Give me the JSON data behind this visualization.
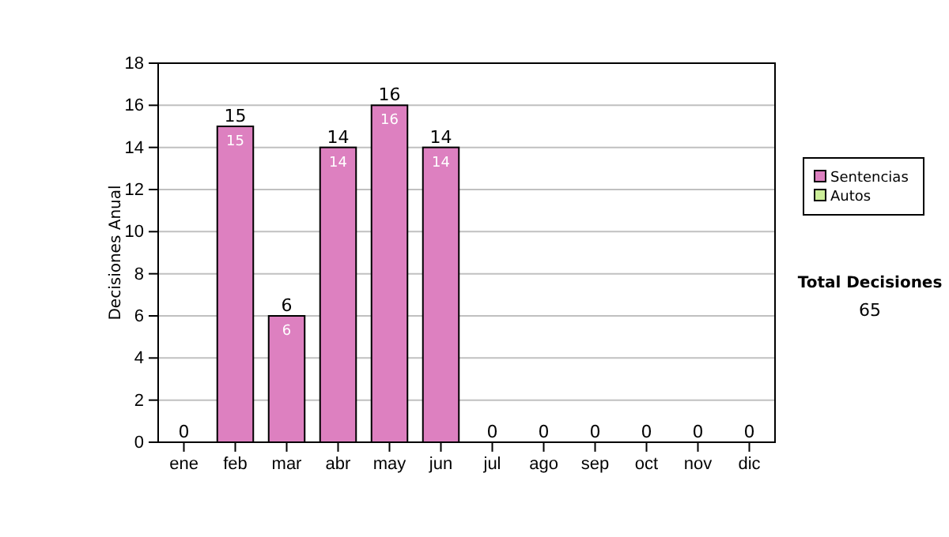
{
  "chart_data": {
    "type": "bar",
    "stacked": true,
    "ylabel": "Decisiones Anual",
    "categories": [
      "ene",
      "feb",
      "mar",
      "abr",
      "may",
      "jun",
      "jul",
      "ago",
      "sep",
      "oct",
      "nov",
      "dic"
    ],
    "series": [
      {
        "name": "Sentencias",
        "color": "#dd80c0",
        "values": [
          0,
          15,
          6,
          14,
          16,
          14,
          0,
          0,
          0,
          0,
          0,
          0
        ],
        "value_labels": [
          null,
          "15",
          "6",
          "14",
          "16",
          "14",
          null,
          null,
          null,
          null,
          null,
          null
        ]
      },
      {
        "name": "Autos",
        "color": "#ccee99",
        "values": [
          0,
          0,
          0,
          0,
          0,
          0,
          0,
          0,
          0,
          0,
          0,
          0
        ]
      }
    ],
    "totals": [
      "0",
      "15",
      "6",
      "14",
      "16",
      "14",
      "0",
      "0",
      "0",
      "0",
      "0",
      "0"
    ],
    "ylim": [
      0,
      18
    ],
    "yticks": [
      0,
      2,
      4,
      6,
      8,
      10,
      12,
      14,
      16,
      18
    ],
    "grid": "y",
    "legend": "right",
    "annotations": [
      "Total Decisiones",
      "65"
    ]
  }
}
